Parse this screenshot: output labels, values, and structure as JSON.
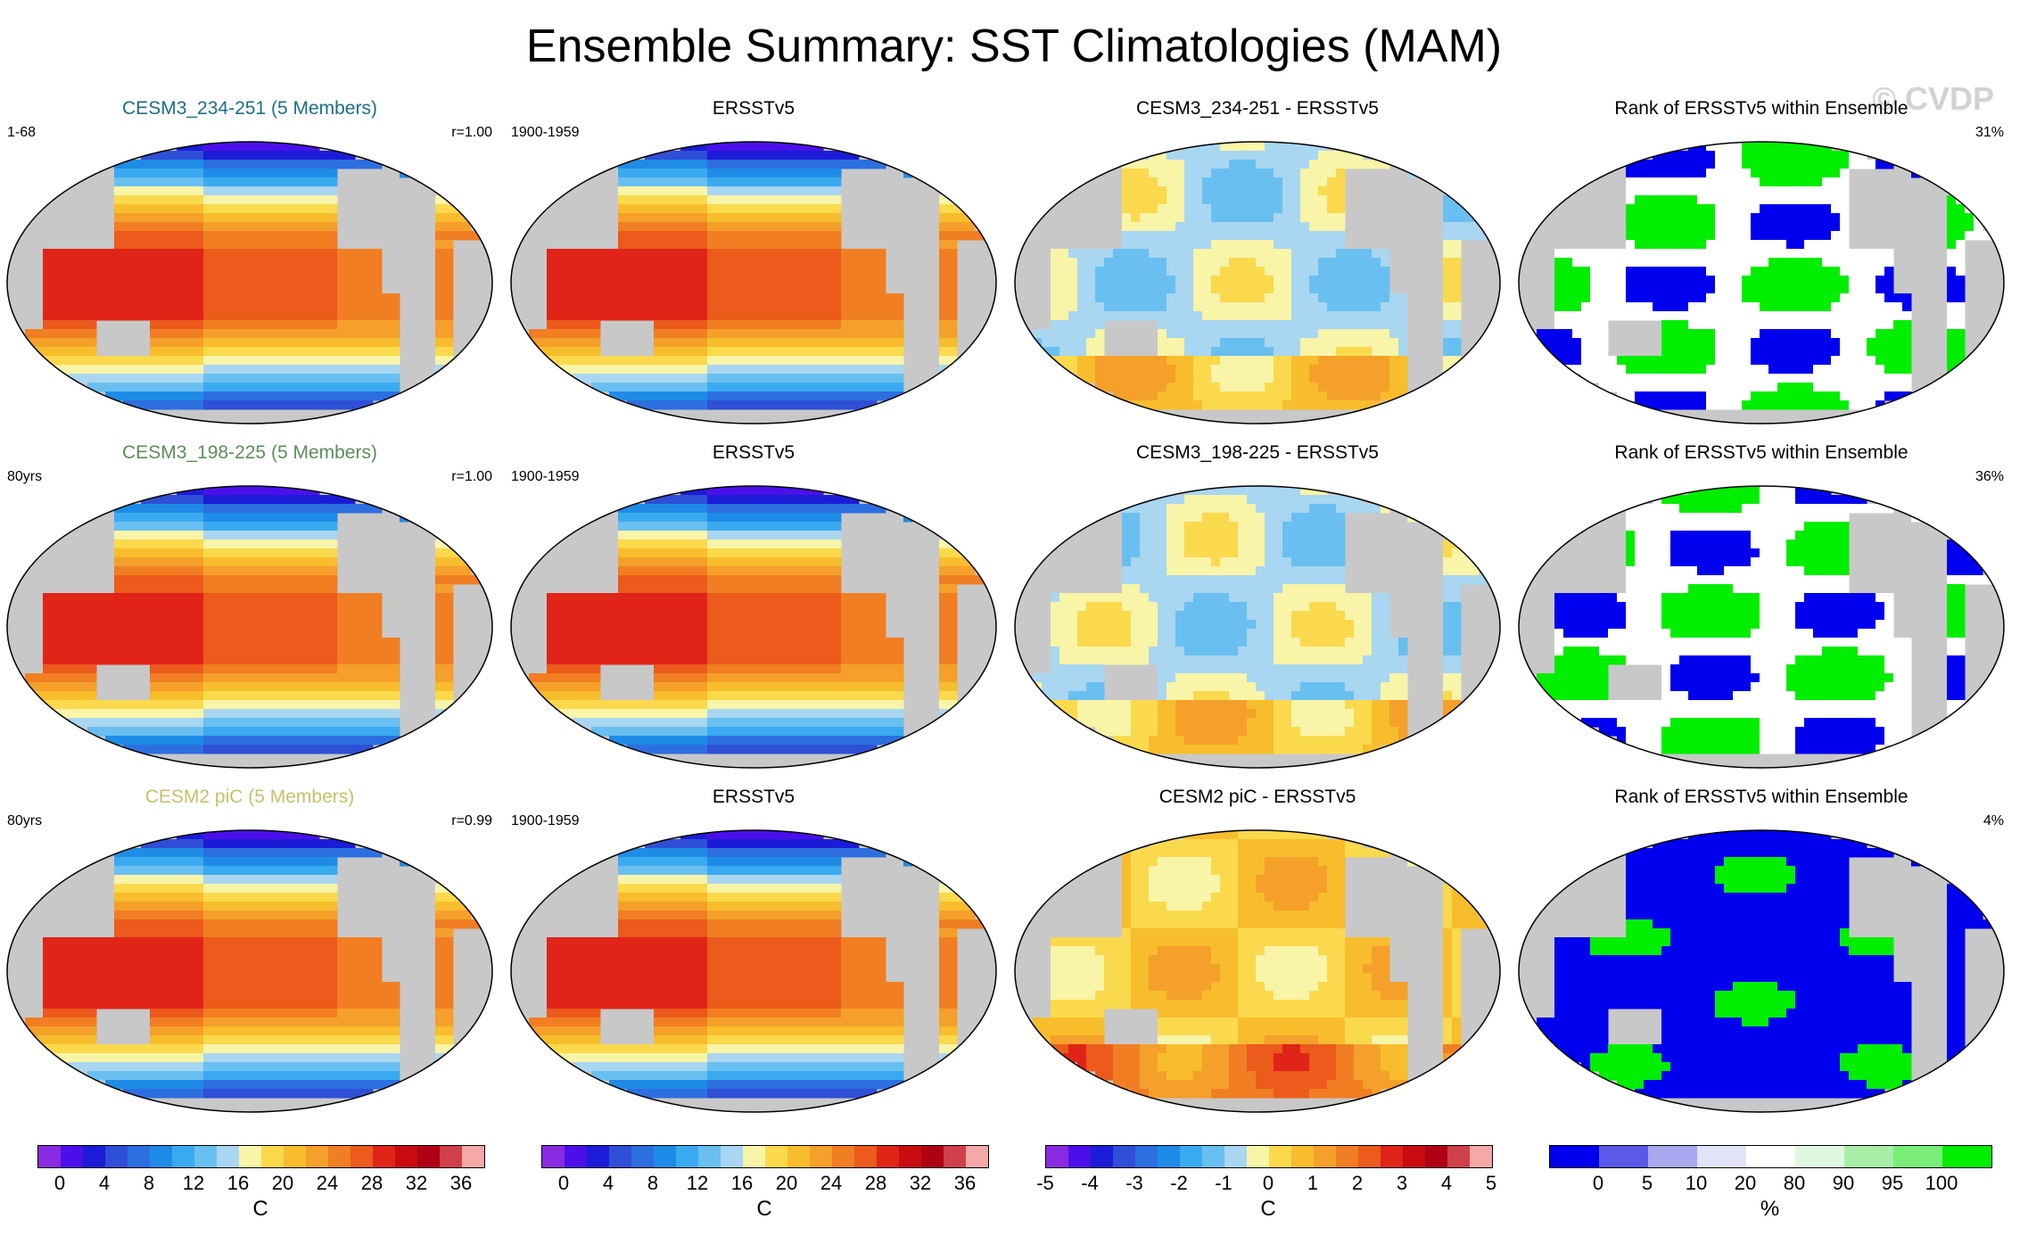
{
  "title": "Ensemble Summary: SST Climatologies (MAM)",
  "watermark": "© CVDP",
  "chart_data": {
    "type": "heatmap",
    "panels": [
      {
        "title": "CESM3_234-251 (5 Members)",
        "title_color": "#1a6f86",
        "left": "1-68",
        "right": "r=1.00",
        "field": "sst",
        "colorbar": 0
      },
      {
        "title": "ERSSTv5",
        "title_color": "#000000",
        "left": "1900-1959",
        "right": "",
        "field": "sst",
        "colorbar": 1
      },
      {
        "title": "CESM3_234-251 - ERSSTv5",
        "title_color": "#000000",
        "left": "",
        "right": "",
        "field": "diff1",
        "colorbar": 2
      },
      {
        "title": "Rank of ERSSTv5 within Ensemble",
        "title_color": "#000000",
        "left": "",
        "right": "31%",
        "field": "rank1",
        "colorbar": 3
      },
      {
        "title": "CESM3_198-225 (5 Members)",
        "title_color": "#5a8f5a",
        "left": "80yrs",
        "right": "r=1.00",
        "field": "sst",
        "colorbar": 0
      },
      {
        "title": "ERSSTv5",
        "title_color": "#000000",
        "left": "1900-1959",
        "right": "",
        "field": "sst",
        "colorbar": 1
      },
      {
        "title": "CESM3_198-225 - ERSSTv5",
        "title_color": "#000000",
        "left": "",
        "right": "",
        "field": "diff2",
        "colorbar": 2
      },
      {
        "title": "Rank of ERSSTv5 within Ensemble",
        "title_color": "#000000",
        "left": "",
        "right": "36%",
        "field": "rank2",
        "colorbar": 3
      },
      {
        "title": "CESM2 piC (5 Members)",
        "title_color": "#c8c06a",
        "left": "80yrs",
        "right": "r=0.99",
        "field": "sst",
        "colorbar": 0
      },
      {
        "title": "ERSSTv5",
        "title_color": "#000000",
        "left": "1900-1959",
        "right": "",
        "field": "sst",
        "colorbar": 1
      },
      {
        "title": "CESM2 piC - ERSSTv5",
        "title_color": "#000000",
        "left": "",
        "right": "",
        "field": "diff3",
        "colorbar": 2
      },
      {
        "title": "Rank of ERSSTv5 within Ensemble",
        "title_color": "#000000",
        "left": "",
        "right": "4%",
        "field": "rank3",
        "colorbar": 3
      }
    ],
    "colorbars": [
      {
        "unit": "C",
        "colors": [
          "#8a2be2",
          "#4b10ea",
          "#1c1cd8",
          "#2f4fd6",
          "#2d6fe0",
          "#1e8ce6",
          "#3aaaf0",
          "#69bff0",
          "#a9d6f0",
          "#f8f4a8",
          "#fad94d",
          "#f8bd2c",
          "#f5a02a",
          "#f17e22",
          "#ec5a1c",
          "#e02418",
          "#c80c10",
          "#b00014",
          "#d0404a",
          "#f5a8a8"
        ],
        "ticks": [
          "0",
          "4",
          "8",
          "12",
          "16",
          "20",
          "24",
          "28",
          "32",
          "36"
        ]
      },
      {
        "unit": "C",
        "colors": [
          "#8a2be2",
          "#4b10ea",
          "#1c1cd8",
          "#2f4fd6",
          "#2d6fe0",
          "#1e8ce6",
          "#3aaaf0",
          "#69bff0",
          "#a9d6f0",
          "#f8f4a8",
          "#fad94d",
          "#f8bd2c",
          "#f5a02a",
          "#f17e22",
          "#ec5a1c",
          "#e02418",
          "#c80c10",
          "#b00014",
          "#d0404a",
          "#f5a8a8"
        ],
        "ticks": [
          "0",
          "4",
          "8",
          "12",
          "16",
          "20",
          "24",
          "28",
          "32",
          "36"
        ]
      },
      {
        "unit": "C",
        "colors": [
          "#8a2be2",
          "#4b10ea",
          "#1c1cd8",
          "#2f4fd6",
          "#2d6fe0",
          "#1e8ce6",
          "#3aaaf0",
          "#69bff0",
          "#a9d6f0",
          "#f8f4a8",
          "#fad94d",
          "#f8bd2c",
          "#f5a02a",
          "#f17e22",
          "#ec5a1c",
          "#e02418",
          "#c80c10",
          "#b00014",
          "#d0404a",
          "#f5a8a8"
        ],
        "ticks": [
          "-5",
          "-4",
          "-3",
          "-2",
          "-1",
          "0",
          "1",
          "2",
          "3",
          "4",
          "5"
        ]
      },
      {
        "unit": "%",
        "colors": [
          "#0000ee",
          "#5a5ae6",
          "#a8a8ee",
          "#e2e2f8",
          "#ffffff",
          "#e0f8e0",
          "#a8eea8",
          "#78ee78",
          "#00ee00"
        ],
        "ticks": [
          "0",
          "5",
          "10",
          "20",
          "80",
          "90",
          "95",
          "100"
        ]
      }
    ]
  }
}
